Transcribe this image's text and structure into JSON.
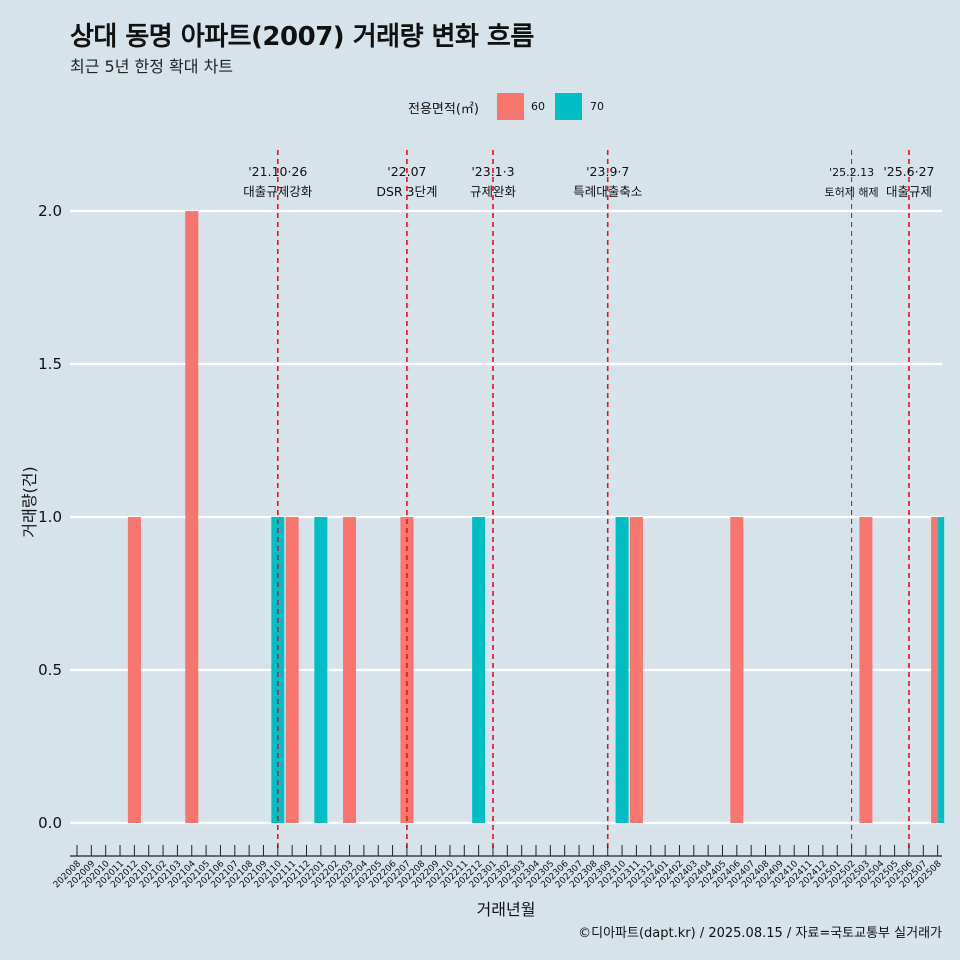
{
  "title": "상대 동명 아파트(2007) 거래량 변화 흐름",
  "subtitle": "최근 5년 한정 확대 차트",
  "caption": "©디아파트(dapt.kr) / 2025.08.15 / 자료=국토교통부 실거래가",
  "legend": {
    "title": "전용면적(㎡)",
    "items": [
      {
        "label": "60",
        "color": "#f8766d"
      },
      {
        "label": "70",
        "color": "#00bfc4"
      }
    ]
  },
  "chart_data": {
    "type": "bar",
    "xlabel": "거래년월",
    "ylabel": "거래량(건)",
    "ylim": [
      0,
      2
    ],
    "yticks": [
      "0.0",
      "0.5",
      "1.0",
      "1.5",
      "2.0"
    ],
    "grid": "horizontal",
    "legend_position": "top",
    "categories": [
      "202008",
      "202009",
      "202010",
      "202011",
      "202012",
      "202101",
      "202102",
      "202103",
      "202104",
      "202105",
      "202106",
      "202107",
      "202108",
      "202109",
      "202110",
      "202111",
      "202112",
      "202201",
      "202202",
      "202203",
      "202204",
      "202205",
      "202206",
      "202207",
      "202208",
      "202209",
      "202210",
      "202211",
      "202212",
      "202301",
      "202302",
      "202303",
      "202304",
      "202305",
      "202306",
      "202307",
      "202308",
      "202309",
      "202310",
      "202311",
      "202312",
      "202401",
      "202402",
      "202403",
      "202404",
      "202405",
      "202406",
      "202407",
      "202408",
      "202409",
      "202410",
      "202411",
      "202412",
      "202501",
      "202502",
      "202503",
      "202504",
      "202505",
      "202506",
      "202507",
      "202508"
    ],
    "series": [
      {
        "name": "60",
        "color": "#f8766d",
        "points": [
          [
            "202012",
            1
          ],
          [
            "202104",
            2
          ],
          [
            "202111",
            1
          ],
          [
            "202203",
            1
          ],
          [
            "202207",
            1
          ],
          [
            "202311",
            1
          ],
          [
            "202406",
            1
          ],
          [
            "202503",
            1
          ],
          [
            "202508",
            1
          ]
        ]
      },
      {
        "name": "70",
        "color": "#00bfc4",
        "points": [
          [
            "202110",
            1
          ],
          [
            "202201",
            1
          ],
          [
            "202212",
            1
          ],
          [
            "202310",
            1
          ],
          [
            "202508",
            1
          ]
        ]
      }
    ],
    "events": [
      {
        "at": "202110",
        "date": "'21.10·26",
        "label": "대출규제강화"
      },
      {
        "at": "202207",
        "date": "'22.07",
        "label": "DSR 3단계"
      },
      {
        "at": "202301",
        "date": "'23.1·3",
        "label": "규제완화"
      },
      {
        "at": "202309",
        "date": "'23.9·7",
        "label": "특례대출축소"
      },
      {
        "at": "202502",
        "date": "'25.2.13",
        "label": "토허제 해제"
      },
      {
        "at": "202506",
        "date": "'25.6·27",
        "label": "대출규제"
      }
    ]
  }
}
